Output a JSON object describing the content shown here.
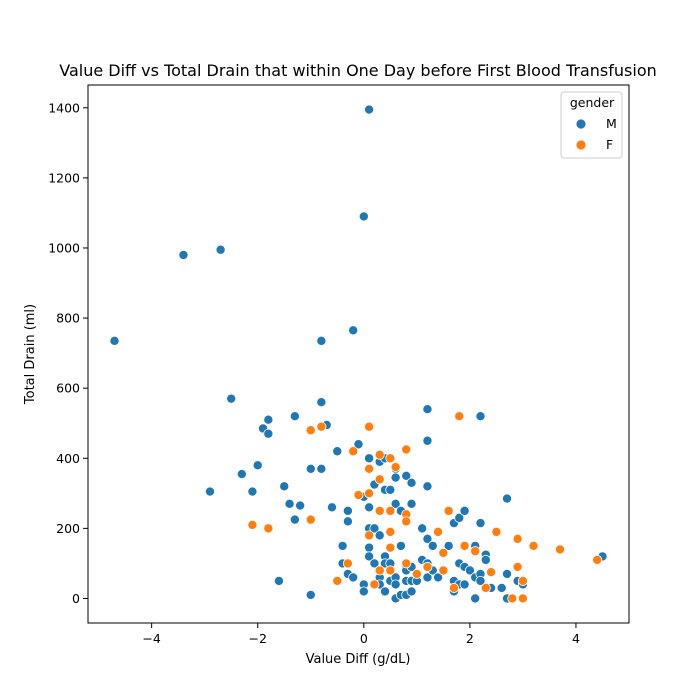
{
  "chart_data": {
    "type": "scatter",
    "title": "Value Diff vs Total Drain that within One Day before First Blood Transfusion",
    "xlabel": "Value Diff (g/dL)",
    "ylabel": "Total Drain (ml)",
    "xlim": [
      -5.2,
      5.0
    ],
    "ylim": [
      -70,
      1465
    ],
    "xticks": [
      -4,
      -2,
      0,
      2,
      4
    ],
    "yticks": [
      0,
      200,
      400,
      600,
      800,
      1000,
      1200,
      1400
    ],
    "xtick_labels": [
      "−4",
      "−2",
      "0",
      "2",
      "4"
    ],
    "ytick_labels": [
      "0",
      "200",
      "400",
      "600",
      "800",
      "1000",
      "1200",
      "1400"
    ],
    "grid": false,
    "legend": {
      "title": "gender",
      "placement": "top-right",
      "entries": [
        {
          "label": "M",
          "color": "#1f77b4"
        },
        {
          "label": "F",
          "color": "#ff7f0e"
        }
      ]
    },
    "series": [
      {
        "name": "M",
        "color": "#1f77b4",
        "points": [
          [
            -4.7,
            735
          ],
          [
            -3.4,
            980
          ],
          [
            -2.7,
            995
          ],
          [
            -2.9,
            305
          ],
          [
            -2.5,
            570
          ],
          [
            -2.3,
            355
          ],
          [
            -2.1,
            305
          ],
          [
            -2.0,
            380
          ],
          [
            -1.9,
            485
          ],
          [
            -1.8,
            510
          ],
          [
            -1.8,
            470
          ],
          [
            -1.6,
            50
          ],
          [
            -1.5,
            320
          ],
          [
            -1.4,
            270
          ],
          [
            -1.3,
            520
          ],
          [
            -1.3,
            225
          ],
          [
            -1.2,
            265
          ],
          [
            -1.0,
            370
          ],
          [
            -1.0,
            10
          ],
          [
            -0.8,
            735
          ],
          [
            -0.8,
            560
          ],
          [
            -0.8,
            370
          ],
          [
            -0.7,
            495
          ],
          [
            -0.6,
            260
          ],
          [
            -0.5,
            420
          ],
          [
            -0.5,
            50
          ],
          [
            -0.4,
            150
          ],
          [
            -0.4,
            100
          ],
          [
            -0.3,
            250
          ],
          [
            -0.3,
            220
          ],
          [
            -0.3,
            70
          ],
          [
            -0.2,
            765
          ],
          [
            -0.2,
            60
          ],
          [
            -0.1,
            440
          ],
          [
            0.0,
            1090
          ],
          [
            0.0,
            290
          ],
          [
            0.0,
            40
          ],
          [
            0.0,
            20
          ],
          [
            0.1,
            1395
          ],
          [
            0.1,
            400
          ],
          [
            0.1,
            260
          ],
          [
            0.1,
            200
          ],
          [
            0.1,
            145
          ],
          [
            0.1,
            120
          ],
          [
            0.2,
            325
          ],
          [
            0.2,
            200
          ],
          [
            0.2,
            100
          ],
          [
            0.3,
            390
          ],
          [
            0.3,
            180
          ],
          [
            0.3,
            60
          ],
          [
            0.3,
            40
          ],
          [
            0.4,
            400
          ],
          [
            0.4,
            310
          ],
          [
            0.4,
            120
          ],
          [
            0.4,
            100
          ],
          [
            0.4,
            20
          ],
          [
            0.5,
            310
          ],
          [
            0.5,
            250
          ],
          [
            0.5,
            100
          ],
          [
            0.5,
            50
          ],
          [
            0.6,
            370
          ],
          [
            0.6,
            345
          ],
          [
            0.6,
            270
          ],
          [
            0.6,
            60
          ],
          [
            0.6,
            40
          ],
          [
            0.6,
            0
          ],
          [
            0.7,
            250
          ],
          [
            0.7,
            150
          ],
          [
            0.7,
            10
          ],
          [
            0.8,
            350
          ],
          [
            0.8,
            90
          ],
          [
            0.8,
            80
          ],
          [
            0.8,
            50
          ],
          [
            0.8,
            10
          ],
          [
            0.9,
            330
          ],
          [
            0.9,
            270
          ],
          [
            0.9,
            90
          ],
          [
            0.9,
            50
          ],
          [
            0.9,
            20
          ],
          [
            1.0,
            50
          ],
          [
            1.1,
            200
          ],
          [
            1.1,
            110
          ],
          [
            1.2,
            540
          ],
          [
            1.2,
            450
          ],
          [
            1.2,
            320
          ],
          [
            1.2,
            170
          ],
          [
            1.2,
            100
          ],
          [
            1.2,
            60
          ],
          [
            1.3,
            150
          ],
          [
            1.3,
            80
          ],
          [
            1.4,
            60
          ],
          [
            1.5,
            80
          ],
          [
            1.6,
            150
          ],
          [
            1.7,
            215
          ],
          [
            1.7,
            50
          ],
          [
            1.7,
            30
          ],
          [
            1.7,
            20
          ],
          [
            1.8,
            230
          ],
          [
            1.8,
            100
          ],
          [
            1.8,
            40
          ],
          [
            1.9,
            250
          ],
          [
            1.9,
            90
          ],
          [
            1.9,
            40
          ],
          [
            2.0,
            80
          ],
          [
            2.1,
            150
          ],
          [
            2.1,
            60
          ],
          [
            2.1,
            0
          ],
          [
            2.2,
            520
          ],
          [
            2.2,
            215
          ],
          [
            2.2,
            70
          ],
          [
            2.2,
            50
          ],
          [
            2.3,
            125
          ],
          [
            2.3,
            110
          ],
          [
            2.4,
            30
          ],
          [
            2.6,
            30
          ],
          [
            2.7,
            285
          ],
          [
            2.7,
            70
          ],
          [
            2.7,
            0
          ],
          [
            2.9,
            50
          ],
          [
            3.0,
            40
          ],
          [
            4.5,
            120
          ]
        ]
      },
      {
        "name": "F",
        "color": "#ff7f0e",
        "points": [
          [
            -2.1,
            210
          ],
          [
            -1.8,
            200
          ],
          [
            -1.0,
            480
          ],
          [
            -1.0,
            225
          ],
          [
            -0.8,
            490
          ],
          [
            -0.5,
            50
          ],
          [
            -0.3,
            100
          ],
          [
            -0.2,
            420
          ],
          [
            -0.1,
            295
          ],
          [
            0.1,
            490
          ],
          [
            0.1,
            370
          ],
          [
            0.1,
            300
          ],
          [
            0.1,
            180
          ],
          [
            0.2,
            40
          ],
          [
            0.3,
            410
          ],
          [
            0.3,
            340
          ],
          [
            0.3,
            250
          ],
          [
            0.3,
            80
          ],
          [
            0.5,
            400
          ],
          [
            0.5,
            250
          ],
          [
            0.5,
            190
          ],
          [
            0.5,
            145
          ],
          [
            0.5,
            80
          ],
          [
            0.6,
            375
          ],
          [
            0.8,
            425
          ],
          [
            0.8,
            240
          ],
          [
            0.8,
            220
          ],
          [
            0.8,
            100
          ],
          [
            1.0,
            70
          ],
          [
            1.2,
            90
          ],
          [
            1.4,
            190
          ],
          [
            1.5,
            130
          ],
          [
            1.5,
            80
          ],
          [
            1.6,
            250
          ],
          [
            1.7,
            30
          ],
          [
            1.8,
            520
          ],
          [
            1.9,
            150
          ],
          [
            2.1,
            135
          ],
          [
            2.3,
            30
          ],
          [
            2.4,
            75
          ],
          [
            2.5,
            190
          ],
          [
            2.8,
            0
          ],
          [
            2.9,
            170
          ],
          [
            2.9,
            90
          ],
          [
            3.0,
            50
          ],
          [
            3.0,
            0
          ],
          [
            3.2,
            150
          ],
          [
            3.7,
            140
          ],
          [
            4.4,
            110
          ]
        ]
      }
    ]
  }
}
